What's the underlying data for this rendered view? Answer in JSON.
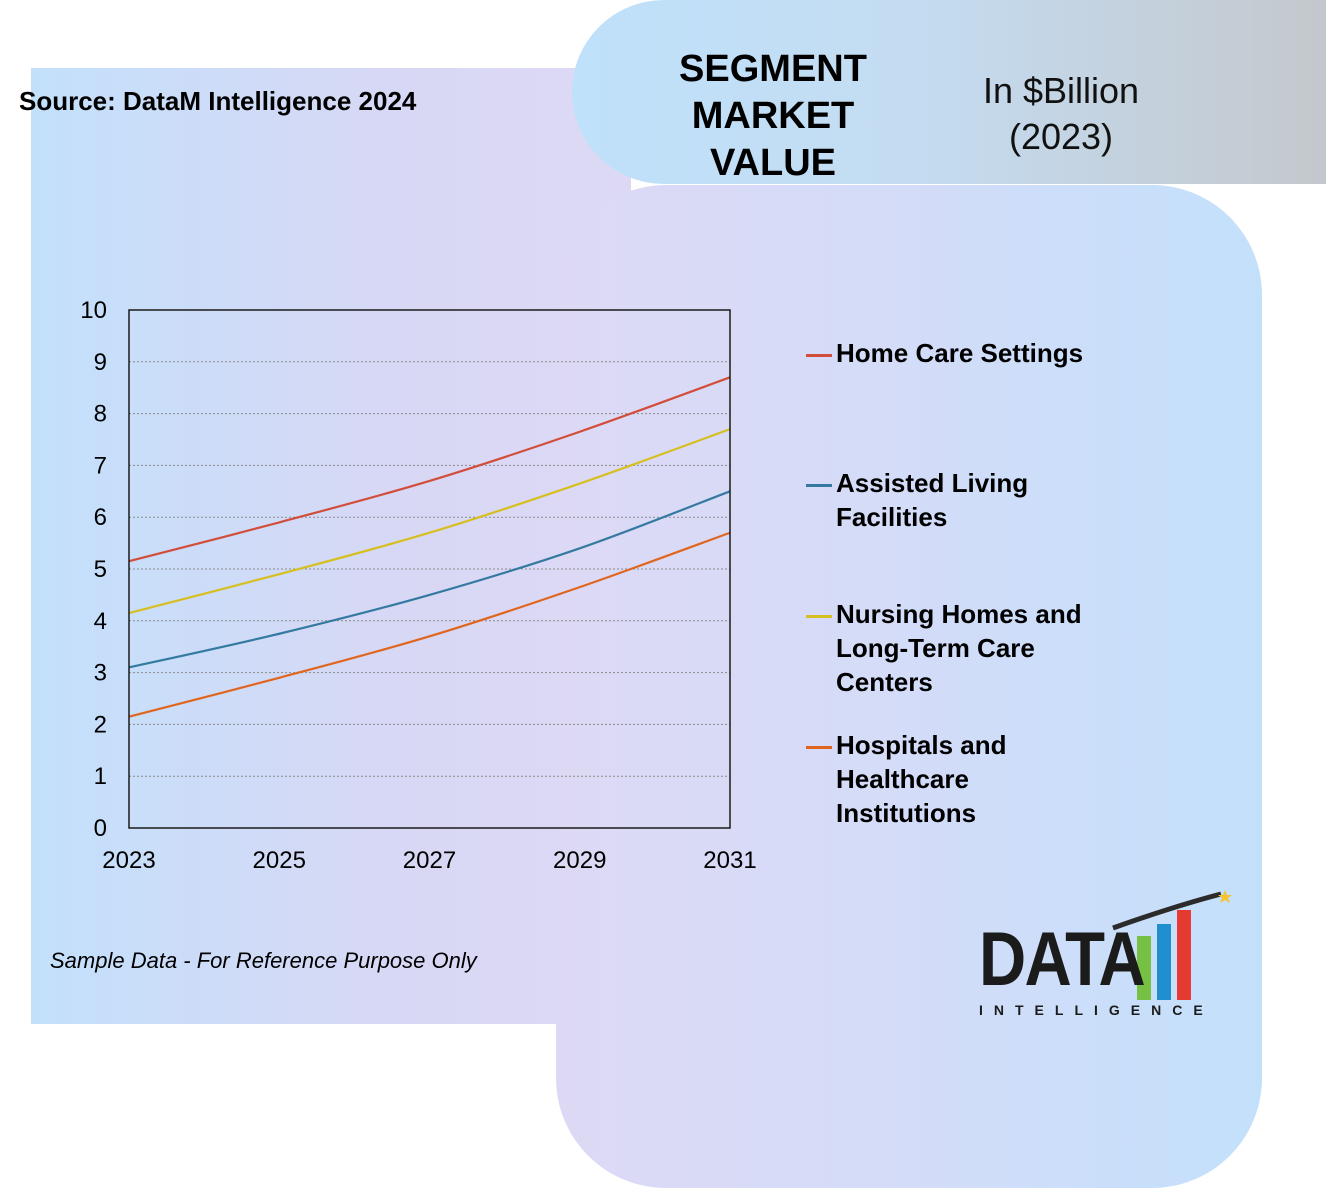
{
  "header": {
    "title": "SEGMENT\nMARKET\nVALUE",
    "unit": "In $Billion\n(2023)"
  },
  "source": "Source: DataM Intelligence 2024",
  "note": "Sample Data - For Reference Purpose Only",
  "logo": {
    "main": "DATA",
    "sub": "INTELLIGENCE"
  },
  "chart_data": {
    "type": "line",
    "x": [
      2023,
      2025,
      2027,
      2029,
      2031
    ],
    "x_ticks": [
      "2023",
      "2025",
      "2027",
      "2029",
      "2031"
    ],
    "ylim": [
      0,
      10
    ],
    "y_ticks": [
      "0",
      "1",
      "2",
      "3",
      "4",
      "5",
      "6",
      "7",
      "8",
      "9",
      "10"
    ],
    "grid": true,
    "legend_position": "right",
    "series": [
      {
        "name": "Home Care Settings",
        "color": "#d24e3a",
        "values": [
          5.15,
          5.9,
          6.7,
          7.65,
          8.7
        ]
      },
      {
        "name": "Assisted Living Facilities",
        "color": "#347aa0",
        "values": [
          3.1,
          3.75,
          4.5,
          5.4,
          6.5
        ]
      },
      {
        "name": "Nursing Homes and Long-Term Care Centers",
        "color": "#d6bf20",
        "values": [
          4.15,
          4.9,
          5.7,
          6.65,
          7.7
        ]
      },
      {
        "name": "Hospitals and Healthcare Institutions",
        "color": "#e0661f",
        "values": [
          2.15,
          2.9,
          3.7,
          4.65,
          5.7
        ]
      }
    ]
  },
  "legend": [
    {
      "label": "Home Care Settings"
    },
    {
      "label": "Assisted Living\nFacilities"
    },
    {
      "label": "Nursing Homes and\nLong-Term Care\nCenters"
    },
    {
      "label": "Hospitals and\nHealthcare\nInstitutions"
    }
  ],
  "colors": {
    "logo_bar_1": "#76c043",
    "logo_bar_2": "#1f8fd0",
    "logo_bar_3": "#e53a2f",
    "logo_star": "#f4c430"
  }
}
